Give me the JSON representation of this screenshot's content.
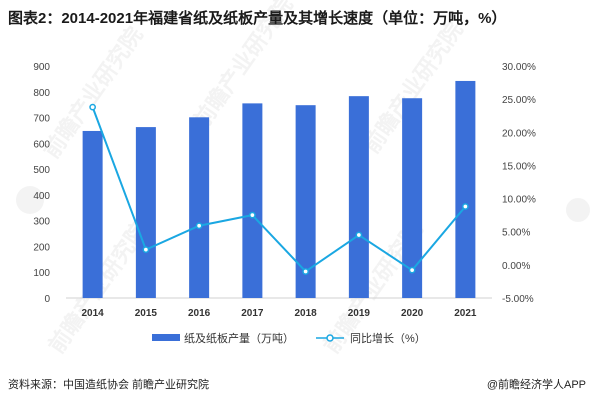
{
  "header": {
    "title": "图表2：2014-2021年福建省纸及纸板产量及其增长速度（单位：万吨，%）"
  },
  "chart_data": {
    "type": "bar",
    "categories": [
      "2014",
      "2015",
      "2016",
      "2017",
      "2018",
      "2019",
      "2020",
      "2021"
    ],
    "series": [
      {
        "name": "纸及纸板产量（万吨）",
        "type": "bar",
        "axis": "left",
        "color": "#3a6fd8",
        "values": [
          648,
          663,
          701,
          755,
          748,
          783,
          775,
          842
        ]
      },
      {
        "name": "同比增长（%）",
        "type": "line",
        "axis": "right",
        "color": "#1aa7e2",
        "values": [
          23.8,
          2.3,
          5.9,
          7.5,
          -1.0,
          4.5,
          -0.8,
          8.8
        ]
      }
    ],
    "ylim_left": [
      0,
      900
    ],
    "yticks_left": [
      "0",
      "100",
      "200",
      "300",
      "400",
      "500",
      "600",
      "700",
      "800",
      "900"
    ],
    "ylim_right": [
      -5,
      30
    ],
    "yticks_right": [
      "-5.00%",
      "0.00%",
      "5.00%",
      "10.00%",
      "15.00%",
      "20.00%",
      "25.00%",
      "30.00%"
    ],
    "grid": false,
    "legend": "bottom"
  },
  "footer": {
    "source": "资料来源：中国造纸协会 前瞻产业研究院",
    "brand": "@前瞻经济学人APP"
  },
  "watermark": {
    "text": "前瞻产业研究院"
  }
}
